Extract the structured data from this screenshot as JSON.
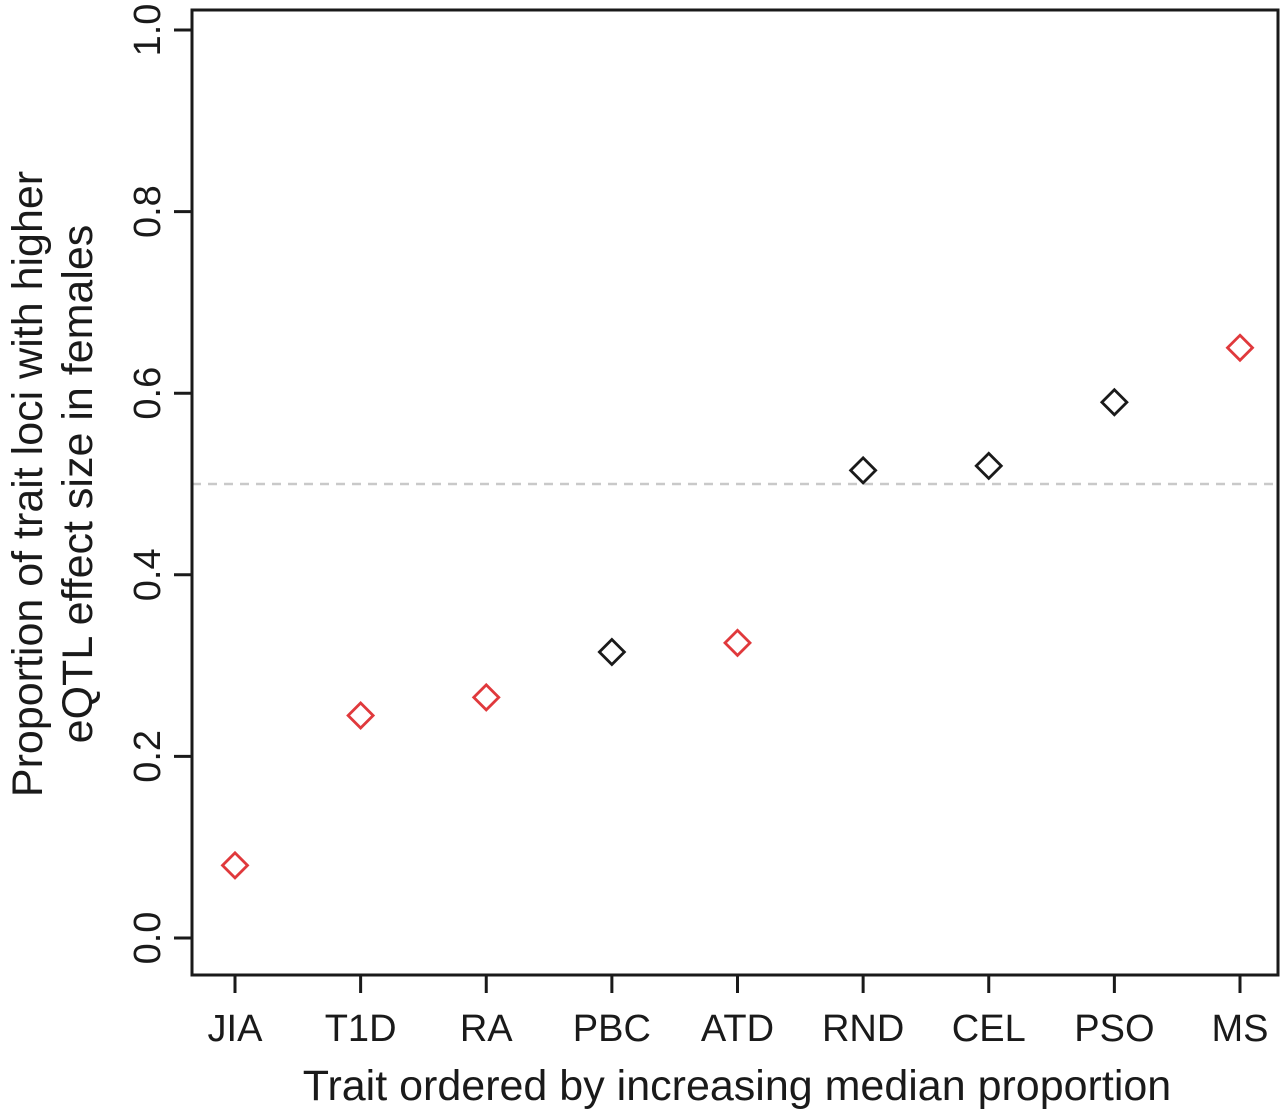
{
  "figure": {
    "background": "#ffffff"
  },
  "chart_data": {
    "type": "scatter",
    "title": "",
    "categories": [
      "JIA",
      "T1D",
      "RA",
      "PBC",
      "ATD",
      "RND",
      "CEL",
      "PSO",
      "MS"
    ],
    "values": [
      0.08,
      0.245,
      0.265,
      0.315,
      0.325,
      0.515,
      0.52,
      0.59,
      0.65
    ],
    "point_colors": [
      "#e0393c",
      "#e0393c",
      "#e0393c",
      "#1a1a1a",
      "#e0393c",
      "#1a1a1a",
      "#1a1a1a",
      "#1a1a1a",
      "#e0393c"
    ],
    "marker": "open-diamond",
    "xlabel": "Trait ordered by increasing median proportion",
    "ylabel_line1": "Proportion of trait loci with higher",
    "ylabel_line2": "eQTL effect size in females",
    "ylim": [
      0.0,
      1.0
    ],
    "yticks": [
      "0.0",
      "0.2",
      "0.4",
      "0.6",
      "0.8",
      "1.0"
    ],
    "ytick_values": [
      0,
      0.2,
      0.4,
      0.6,
      0.8,
      1.0
    ],
    "reference_line": {
      "y": 0.5,
      "style": "dashed",
      "color": "#c9c9c9"
    },
    "grid": "off",
    "legend": "none",
    "axis_color": "#1a1a1a"
  }
}
